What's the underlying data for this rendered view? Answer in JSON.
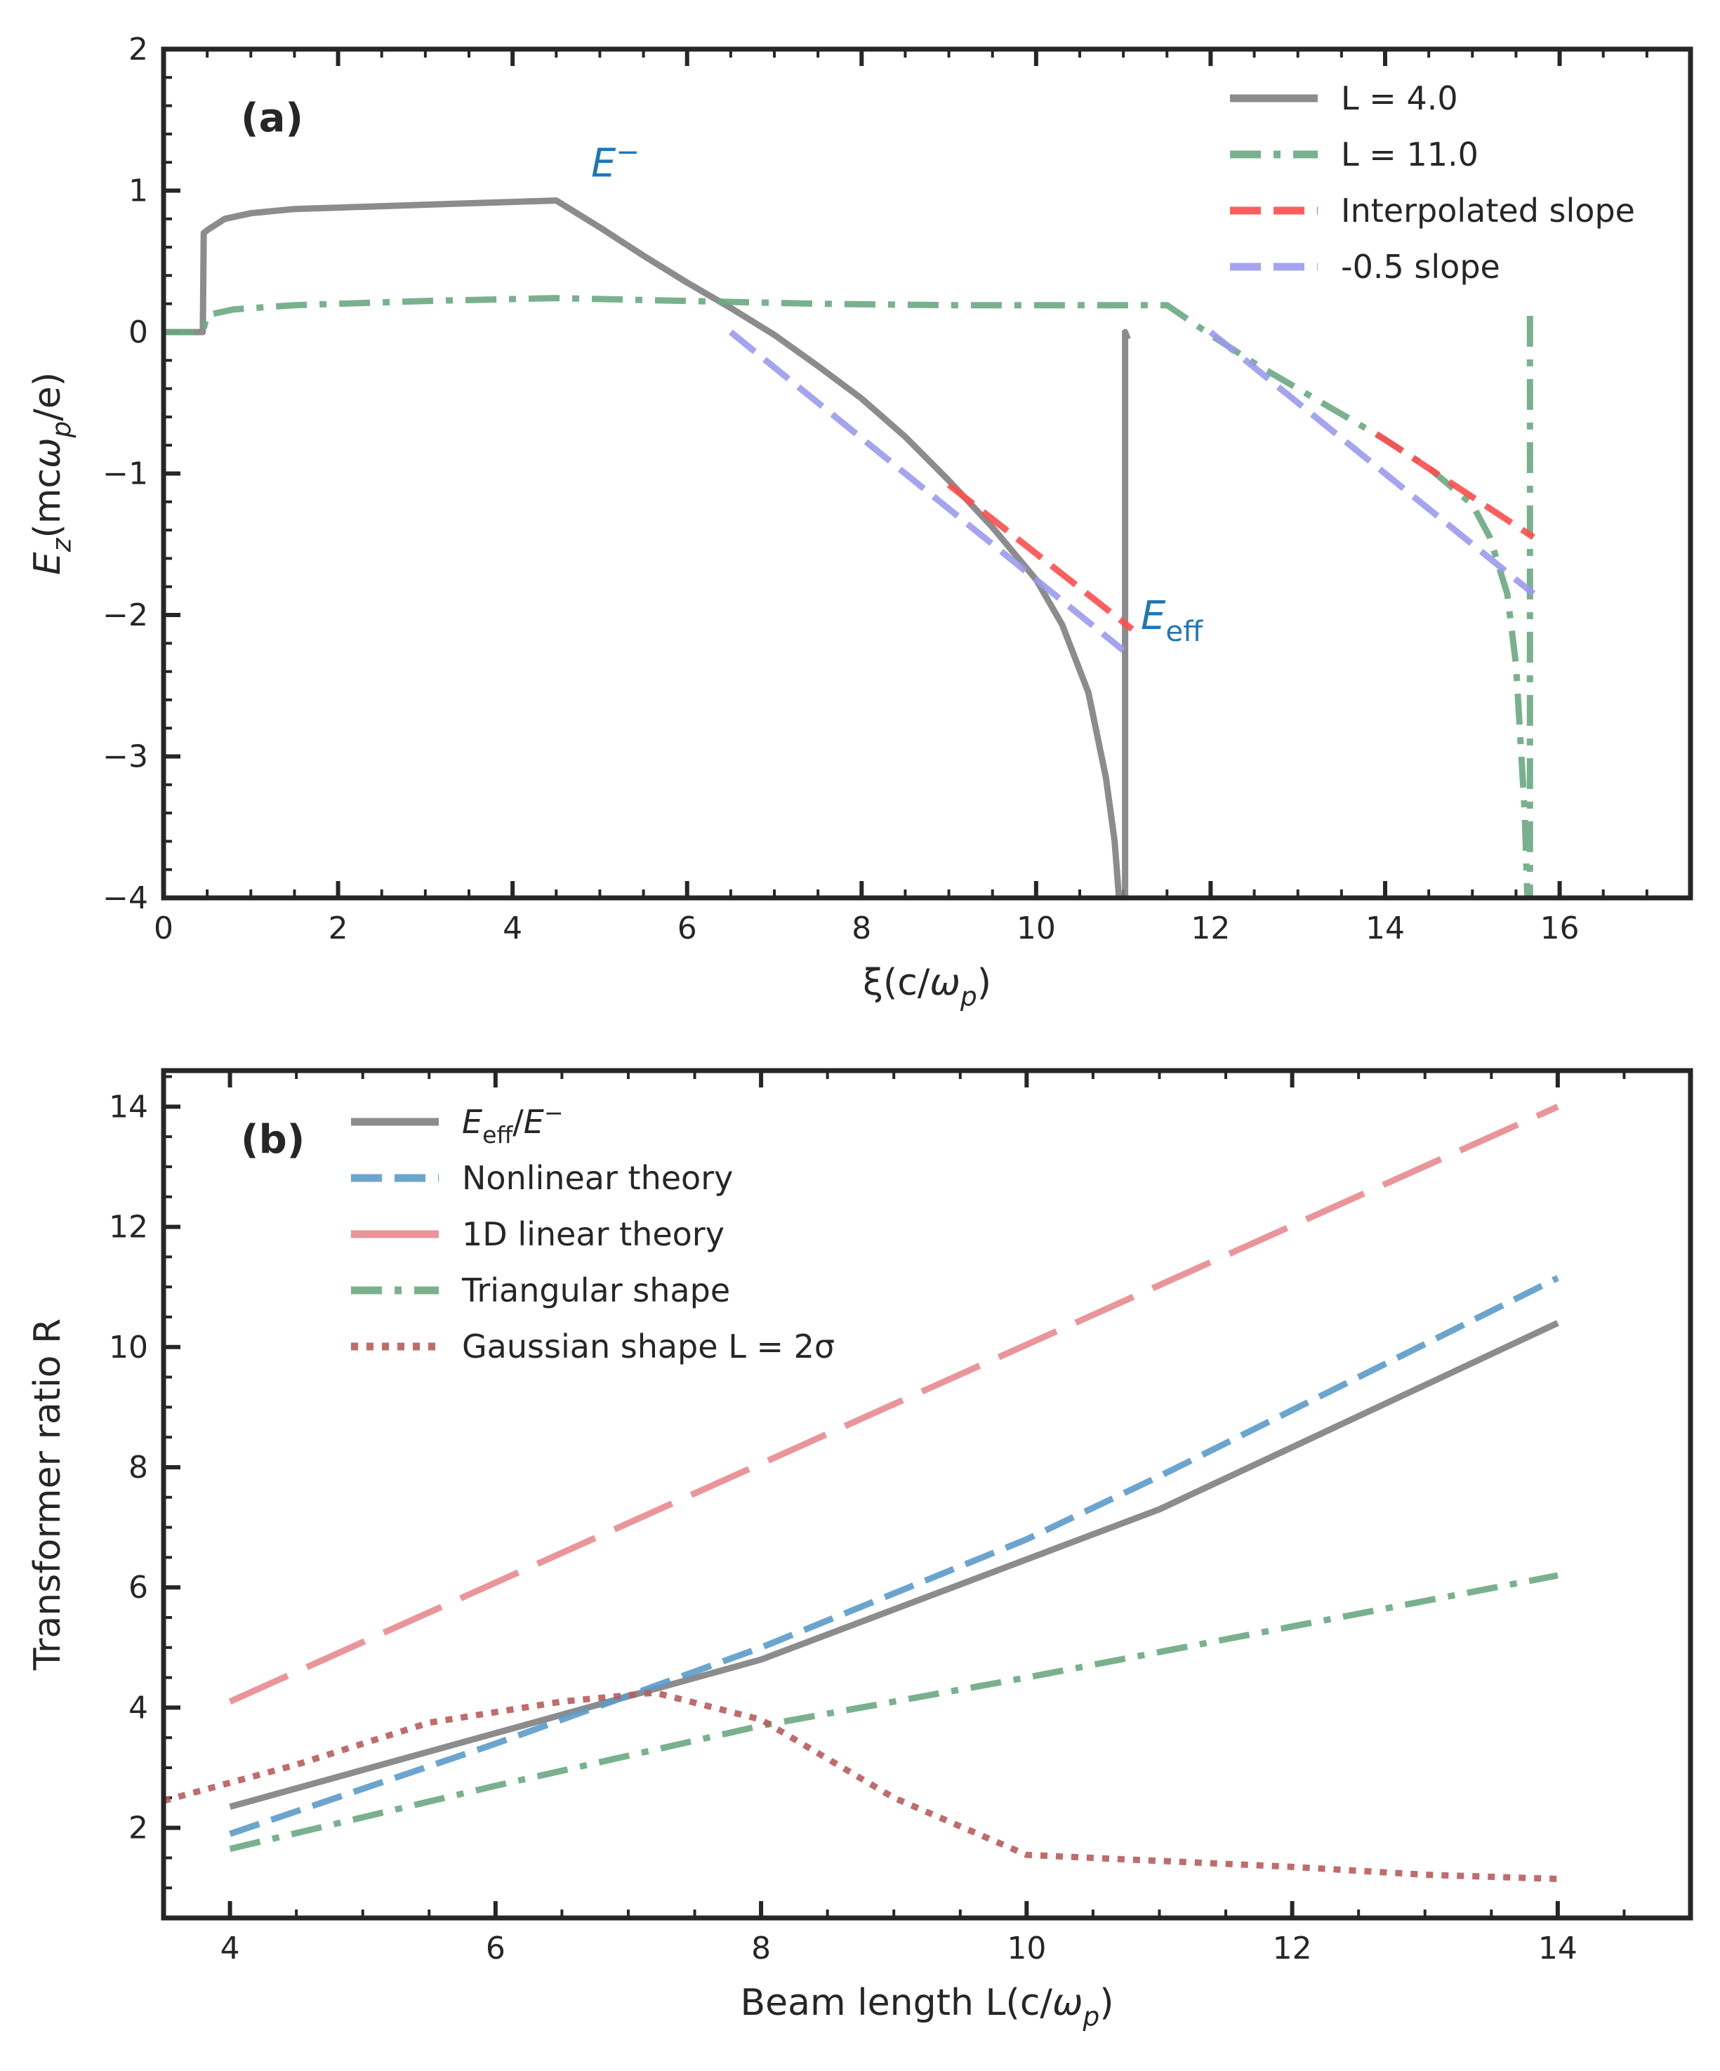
{
  "chart_data": [
    {
      "type": "line",
      "panel": "(a)",
      "xlabel": "ξ(c/ω_p)",
      "ylabel": "E_z(mcω_p/e)",
      "xlim": [
        0,
        17.5
      ],
      "ylim": [
        -4,
        2
      ],
      "xticks": [
        0,
        2,
        4,
        6,
        8,
        10,
        12,
        14,
        16
      ],
      "yticks": [
        -4,
        -3,
        -2,
        -1,
        0,
        1,
        2
      ],
      "annotations": [
        {
          "text": "E⁻",
          "x": 4.9,
          "y": 1.1,
          "color": "#1f77b4"
        },
        {
          "text": "E_eff",
          "x": 11.2,
          "y": -2.1,
          "color": "#1f77b4"
        }
      ],
      "series": [
        {
          "name": "L = 4.0",
          "color": "#808080",
          "style": "solid",
          "x": [
            0,
            0.45,
            0.46,
            0.5,
            0.7,
            1.0,
            1.5,
            2.0,
            3.0,
            4.0,
            4.5,
            5.0,
            5.5,
            6.0,
            6.5,
            7.0,
            7.5,
            8.0,
            8.5,
            9.0,
            9.5,
            10.0,
            10.3,
            10.6,
            10.8,
            10.9,
            10.95,
            11.02,
            11.02,
            11.05
          ],
          "y": [
            0,
            0,
            0.7,
            0.72,
            0.8,
            0.84,
            0.87,
            0.88,
            0.9,
            0.92,
            0.93,
            0.74,
            0.54,
            0.35,
            0.17,
            -0.02,
            -0.24,
            -0.47,
            -0.74,
            -1.05,
            -1.38,
            -1.75,
            -2.07,
            -2.55,
            -3.15,
            -3.6,
            -4.0,
            -4.0,
            0.0,
            -0.05
          ]
        },
        {
          "name": "L = 11.0",
          "color": "#6aa882",
          "style": "dashdot",
          "x": [
            0,
            0.45,
            0.5,
            0.8,
            1.5,
            3.0,
            4.5,
            6.0,
            7.5,
            9.0,
            10.5,
            11.5,
            12.0,
            12.5,
            13.0,
            13.5,
            14.0,
            14.5,
            15.0,
            15.2,
            15.4,
            15.5,
            15.6,
            15.63,
            15.66,
            15.66,
            15.68
          ],
          "y": [
            0,
            0,
            0.12,
            0.16,
            0.19,
            0.22,
            0.24,
            0.22,
            0.2,
            0.19,
            0.19,
            0.19,
            -0.02,
            -0.22,
            -0.4,
            -0.58,
            -0.76,
            -0.96,
            -1.22,
            -1.45,
            -1.85,
            -2.35,
            -3.4,
            -4.0,
            -4.0,
            0.15,
            0.15
          ]
        },
        {
          "name": "Interpolated slope",
          "color": "#ff4d4d",
          "style": "dashed",
          "segments": [
            {
              "x": [
                9.0,
                11.1
              ],
              "y": [
                -1.08,
                -2.1
              ]
            },
            {
              "x": [
                13.9,
                15.7
              ],
              "y": [
                -0.72,
                -1.45
              ]
            }
          ]
        },
        {
          "name": "-0.5 slope",
          "color": "#9a9aee",
          "style": "dashed",
          "segments": [
            {
              "x": [
                6.5,
                11.0
              ],
              "y": [
                0.0,
                -2.25
              ]
            },
            {
              "x": [
                12.0,
                15.7
              ],
              "y": [
                0.0,
                -1.85
              ]
            }
          ]
        }
      ]
    },
    {
      "type": "line",
      "panel": "(b)",
      "xlabel": "Beam length L(c/ω_p)",
      "ylabel": "Transformer ratio R",
      "xlim": [
        3.5,
        15.0
      ],
      "ylim": [
        0.5,
        14.6
      ],
      "xticks": [
        4,
        6,
        8,
        10,
        12,
        14
      ],
      "yticks": [
        2,
        4,
        6,
        8,
        10,
        12,
        14
      ],
      "series": [
        {
          "name": "E_eff/E⁻",
          "color": "#808080",
          "style": "solid",
          "x": [
            4,
            8,
            11,
            14
          ],
          "y": [
            2.35,
            4.8,
            7.3,
            10.4
          ]
        },
        {
          "name": "Nonlinear theory",
          "color": "#5b9bc9",
          "style": "dashed",
          "x": [
            4,
            6,
            8,
            10,
            11,
            12,
            14
          ],
          "y": [
            1.9,
            3.4,
            5.0,
            6.8,
            7.85,
            8.95,
            11.15
          ]
        },
        {
          "name": "1D linear theory",
          "color": "#e8898e",
          "style": "longdash",
          "x": [
            4,
            14
          ],
          "y": [
            4.1,
            14.0
          ]
        },
        {
          "name": "Triangular shape",
          "color": "#6aa882",
          "style": "dashdot",
          "x": [
            4,
            6,
            8,
            10,
            12,
            14
          ],
          "y": [
            1.65,
            2.7,
            3.7,
            4.5,
            5.35,
            6.2
          ]
        },
        {
          "name": "Gaussian shape L = 2σ",
          "color": "#b85c5c",
          "style": "dotted",
          "x": [
            3.5,
            4.5,
            5.5,
            6.5,
            7.2,
            8.0,
            9.0,
            10.0,
            11.0,
            12.0,
            13.0,
            14.0
          ],
          "y": [
            2.45,
            3.05,
            3.75,
            4.1,
            4.25,
            3.8,
            2.5,
            1.55,
            1.45,
            1.35,
            1.22,
            1.15
          ]
        }
      ]
    }
  ],
  "legend_a": {
    "items": [
      {
        "label": "L = 4.0"
      },
      {
        "label": "L = 11.0"
      },
      {
        "label": "Interpolated slope"
      },
      {
        "label": "-0.5 slope"
      }
    ]
  },
  "legend_b": {
    "items": [
      {
        "label": "E_eff/E⁻"
      },
      {
        "label": "Nonlinear theory"
      },
      {
        "label": "1D linear theory"
      },
      {
        "label": "Triangular shape"
      },
      {
        "label": "Gaussian shape L = 2σ"
      }
    ]
  }
}
